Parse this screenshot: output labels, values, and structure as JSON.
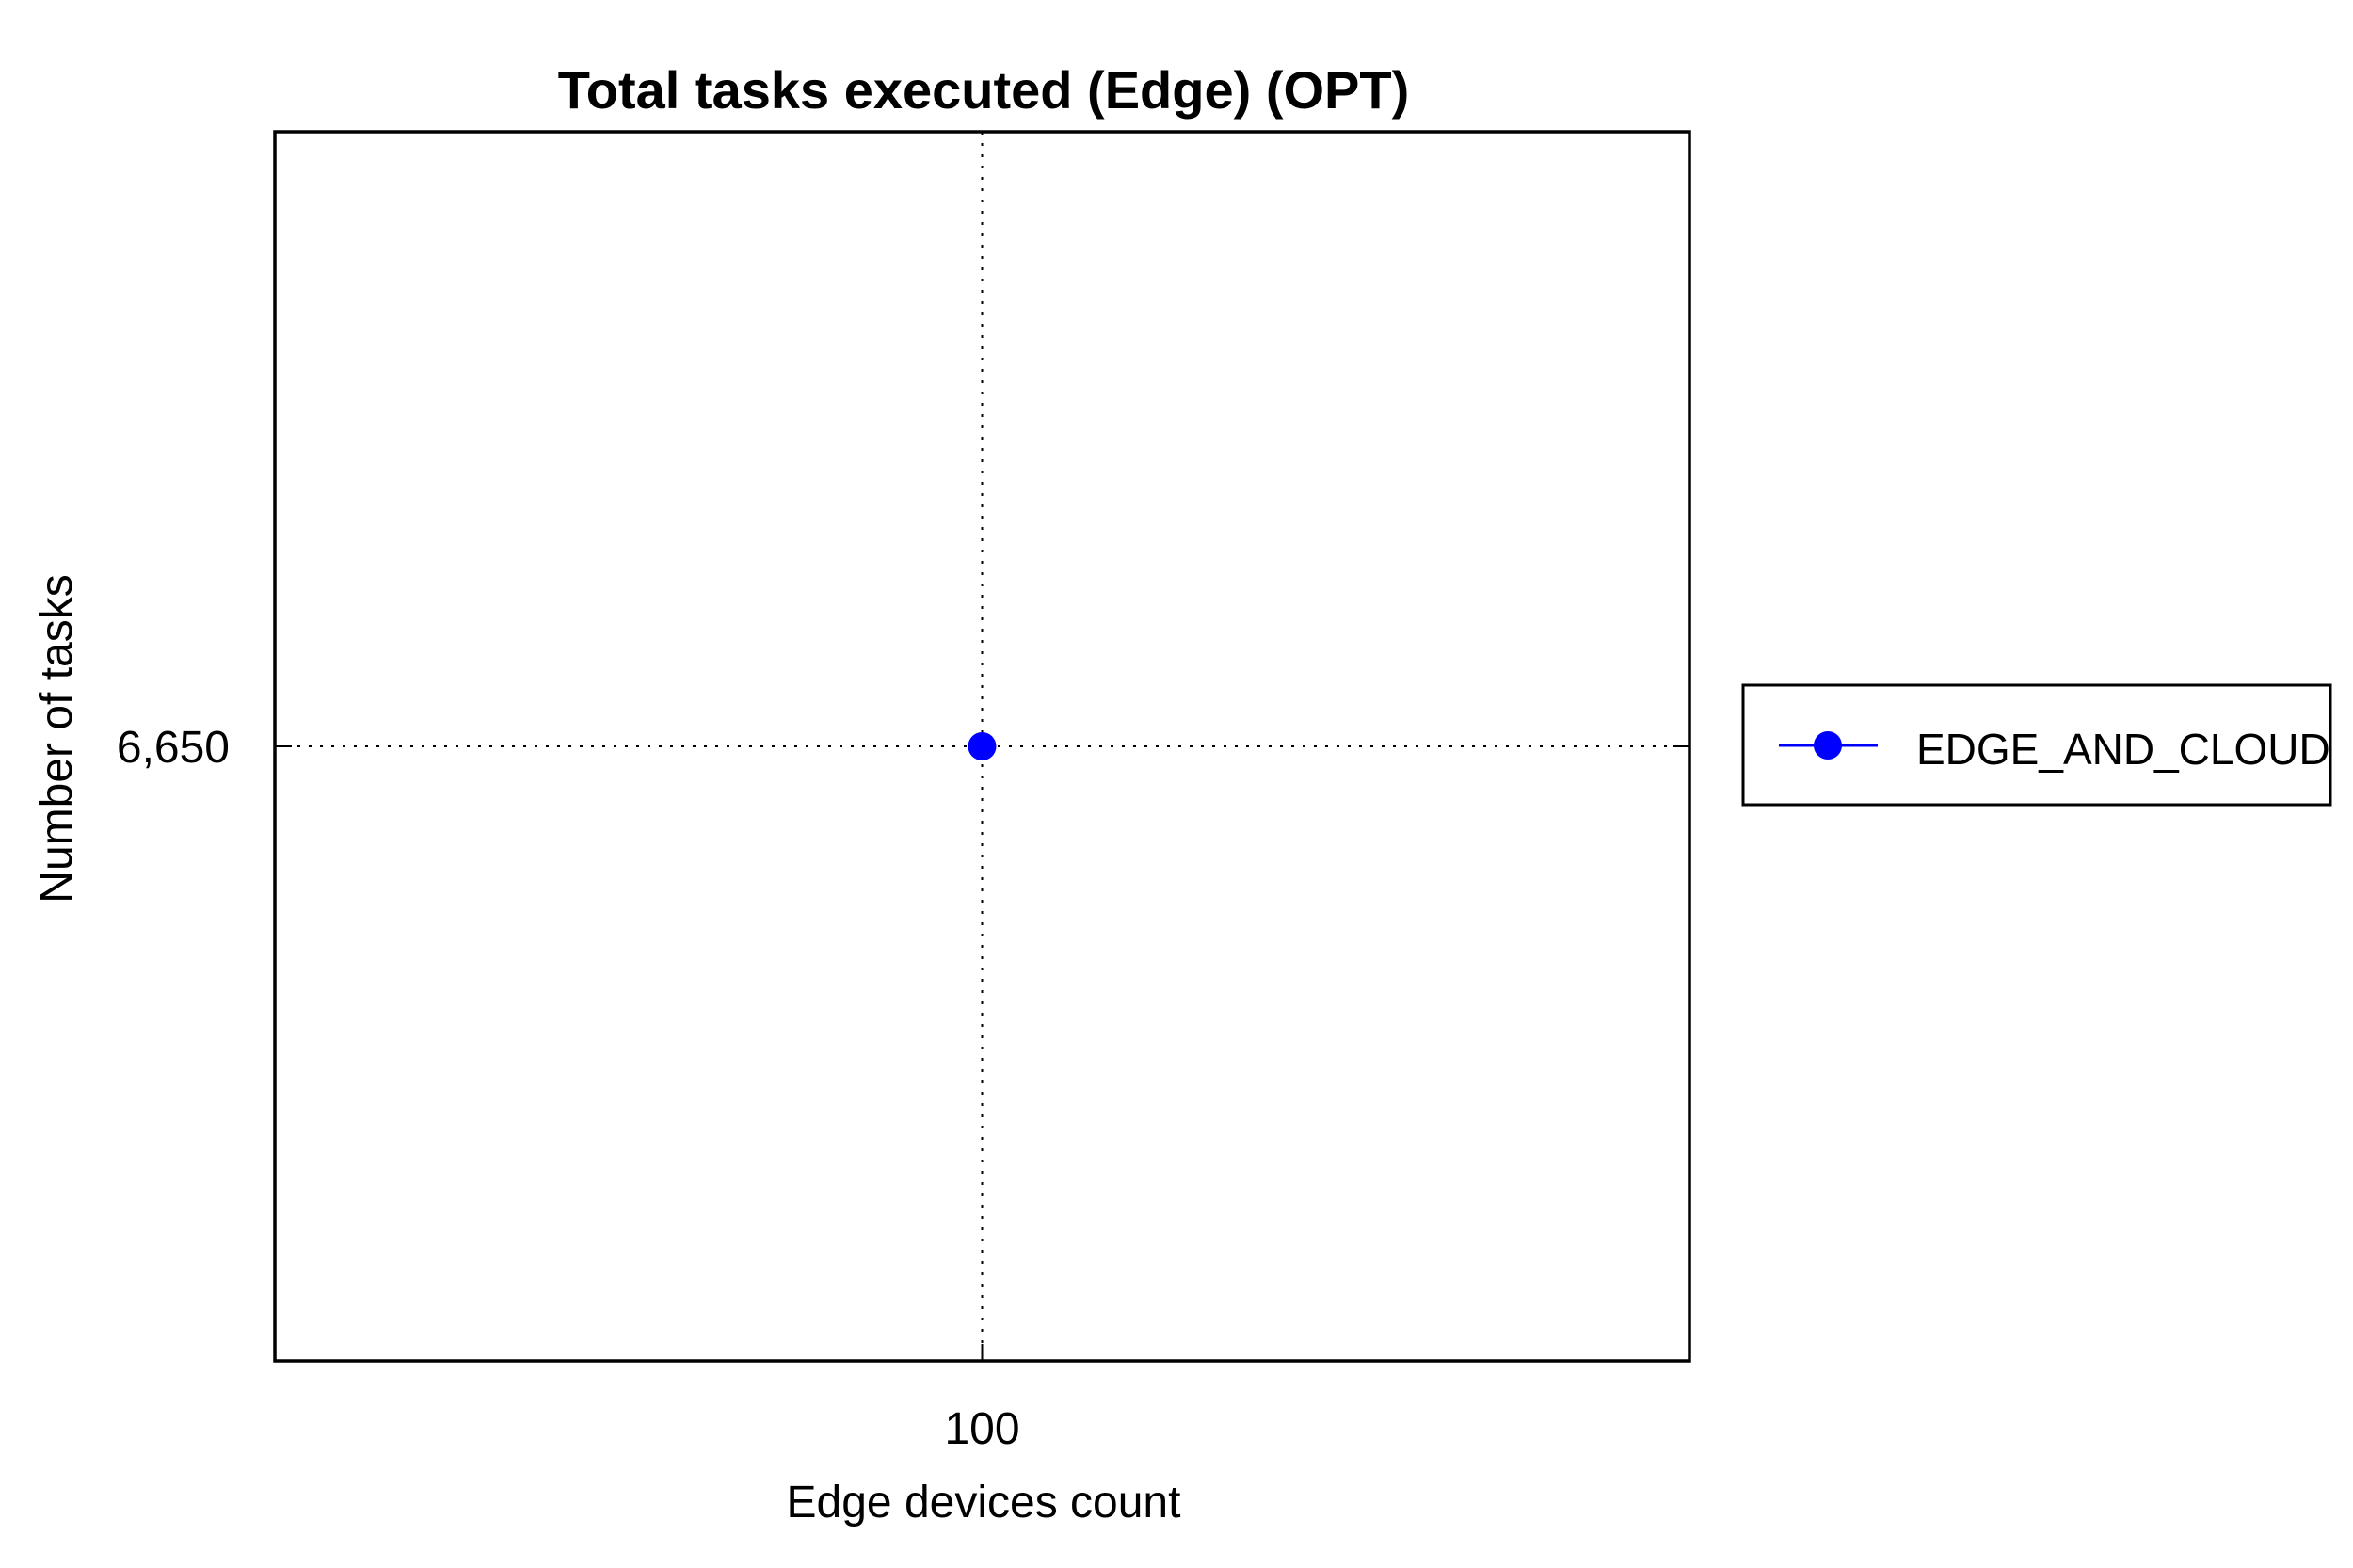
{
  "chart_data": {
    "type": "line",
    "title": "Total tasks executed (Edge) (OPT)",
    "xlabel": "Edge devices count",
    "ylabel": "Number of tasks",
    "x_tick_labels": [
      "100"
    ],
    "y_tick_labels": [
      "6,650"
    ],
    "x_ticks": [
      100
    ],
    "y_ticks": [
      6650
    ],
    "xlim": [
      99,
      101
    ],
    "ylim": [
      6649,
      6651
    ],
    "grid": true,
    "legend_position": "right",
    "series": [
      {
        "name": "EDGE_AND_CLOUD",
        "color": "#0000ff",
        "marker": "circle",
        "x": [
          100
        ],
        "y": [
          6650
        ]
      }
    ]
  }
}
